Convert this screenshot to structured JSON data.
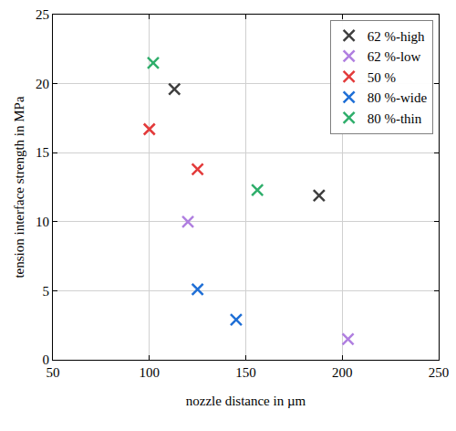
{
  "chart_data": {
    "type": "scatter",
    "x_label": "nozzle distance in µm",
    "y_label": "tension interface strength in MPa",
    "series": [
      {
        "name": "62 %-high",
        "color": "#3f3f3f",
        "x": [
          113,
          188
        ],
        "values": [
          19.6,
          11.9
        ]
      },
      {
        "name": "62 %-low",
        "color": "#b07fe0",
        "x": [
          120,
          203
        ],
        "values": [
          10.0,
          1.5
        ]
      },
      {
        "name": "50 %",
        "color": "#e33b3b",
        "x": [
          100,
          125
        ],
        "values": [
          16.7,
          13.8
        ]
      },
      {
        "name": "80 %-wide",
        "color": "#1f6fd6",
        "x": [
          125,
          145
        ],
        "values": [
          5.1,
          2.9
        ]
      },
      {
        "name": "80 %-thin",
        "color": "#2fae6b",
        "x": [
          102,
          156
        ],
        "values": [
          21.5,
          12.3
        ]
      }
    ],
    "xlim": [
      50,
      250
    ],
    "xticks": [
      50,
      100,
      150,
      200,
      250
    ],
    "ylim": [
      0,
      25
    ],
    "yticks": [
      0,
      5,
      10,
      15,
      20,
      25
    ],
    "grid": true,
    "legend": "top right",
    "marker": "x"
  }
}
